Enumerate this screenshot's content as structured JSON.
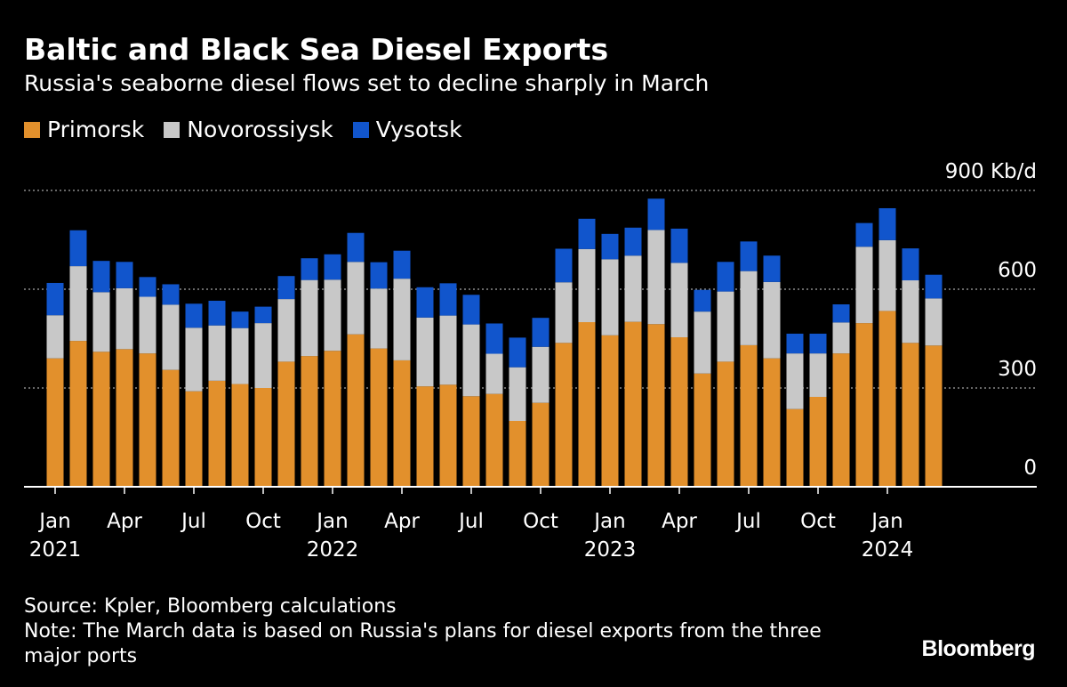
{
  "header": {
    "title": "Baltic and Black Sea Diesel Exports",
    "subtitle": "Russia's seaborne diesel flows set to decline sharply in March"
  },
  "legend": [
    {
      "label": "Primorsk",
      "color": "#e2902c"
    },
    {
      "label": "Novorossiysk",
      "color": "#c8c8c8"
    },
    {
      "label": "Vysotsk",
      "color": "#1155cc"
    }
  ],
  "footer": {
    "source": "Source: Kpler, Bloomberg calculations",
    "note": "Note: The March data is based on Russia's plans for diesel exports from the three major ports",
    "brand": "Bloomberg"
  },
  "chart_data": {
    "type": "bar",
    "stacked": true,
    "unit": "Kb/d",
    "ylim": [
      0,
      900
    ],
    "y_ticks": [
      {
        "value": 0,
        "label": "0"
      },
      {
        "value": 300,
        "label": "300"
      },
      {
        "value": 600,
        "label": "600"
      },
      {
        "value": 900,
        "label": "900 Kb/d"
      }
    ],
    "grid": true,
    "legend_position": "top-left",
    "categories": [
      "2021-01",
      "2021-02",
      "2021-03",
      "2021-04",
      "2021-05",
      "2021-06",
      "2021-07",
      "2021-08",
      "2021-09",
      "2021-10",
      "2021-11",
      "2021-12",
      "2022-01",
      "2022-02",
      "2022-03",
      "2022-04",
      "2022-05",
      "2022-06",
      "2022-07",
      "2022-08",
      "2022-09",
      "2022-10",
      "2022-11",
      "2022-12",
      "2023-01",
      "2023-02",
      "2023-03",
      "2023-04",
      "2023-05",
      "2023-06",
      "2023-07",
      "2023-08",
      "2023-09",
      "2023-10",
      "2023-11",
      "2023-12",
      "2024-01",
      "2024-02",
      "2024-03"
    ],
    "x_tick_labels": [
      {
        "index": 0,
        "month": "Jan",
        "year": "2021"
      },
      {
        "index": 3,
        "month": "Apr",
        "year": ""
      },
      {
        "index": 6,
        "month": "Jul",
        "year": ""
      },
      {
        "index": 9,
        "month": "Oct",
        "year": ""
      },
      {
        "index": 12,
        "month": "Jan",
        "year": "2022"
      },
      {
        "index": 15,
        "month": "Apr",
        "year": ""
      },
      {
        "index": 18,
        "month": "Jul",
        "year": ""
      },
      {
        "index": 21,
        "month": "Oct",
        "year": ""
      },
      {
        "index": 24,
        "month": "Jan",
        "year": "2023"
      },
      {
        "index": 27,
        "month": "Apr",
        "year": ""
      },
      {
        "index": 30,
        "month": "Jul",
        "year": ""
      },
      {
        "index": 33,
        "month": "Oct",
        "year": ""
      },
      {
        "index": 36,
        "month": "Jan",
        "year": "2024"
      }
    ],
    "series": [
      {
        "name": "Primorsk",
        "color": "#e2902c",
        "values": [
          390,
          443,
          410,
          418,
          405,
          355,
          290,
          322,
          312,
          300,
          380,
          397,
          413,
          463,
          420,
          384,
          305,
          310,
          275,
          282,
          200,
          255,
          437,
          500,
          460,
          501,
          494,
          454,
          344,
          380,
          430,
          390,
          236,
          273,
          405,
          497,
          534,
          437,
          429
        ]
      },
      {
        "name": "Novorossiysk",
        "color": "#c8c8c8",
        "values": [
          131,
          227,
          181,
          185,
          172,
          198,
          193,
          168,
          170,
          197,
          190,
          231,
          216,
          220,
          182,
          248,
          209,
          210,
          218,
          122,
          163,
          170,
          184,
          222,
          231,
          201,
          286,
          226,
          188,
          213,
          225,
          232,
          169,
          132,
          94,
          232,
          215,
          190,
          143
        ]
      },
      {
        "name": "Vysotsk",
        "color": "#1155cc",
        "values": [
          98,
          109,
          95,
          80,
          60,
          62,
          73,
          75,
          50,
          50,
          70,
          66,
          77,
          88,
          80,
          85,
          92,
          98,
          90,
          92,
          90,
          88,
          102,
          92,
          77,
          85,
          95,
          104,
          66,
          90,
          90,
          80,
          60,
          60,
          55,
          72,
          97,
          97,
          72
        ]
      }
    ]
  }
}
